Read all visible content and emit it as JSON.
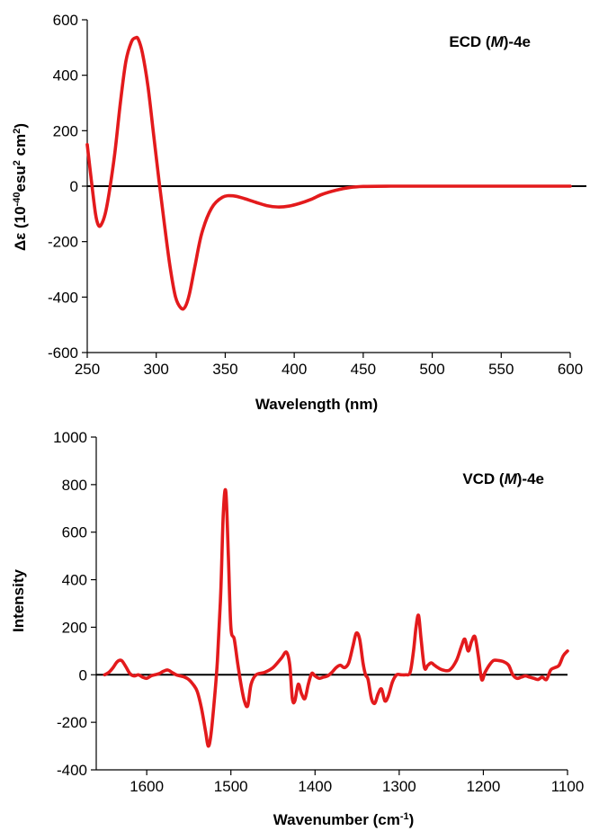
{
  "chart_data": [
    {
      "type": "line",
      "title_prefix": "ECD (",
      "title_italic": "M",
      "title_suffix": ")-4e",
      "xlabel": "Wavelength (nm)",
      "ylabel_main": "Δε  (10",
      "ylabel_sup1": "-40",
      "ylabel_mid": "esu",
      "ylabel_sup2": "2",
      "ylabel_end": " cm",
      "ylabel_sup3": "2",
      "ylabel_close": ")",
      "xlim": [
        250,
        600
      ],
      "ylim": [
        -600,
        600
      ],
      "x_reversed": false,
      "xticks": [
        250,
        300,
        350,
        400,
        450,
        500,
        550,
        600
      ],
      "yticks": [
        -600,
        -400,
        -200,
        0,
        200,
        400,
        600
      ],
      "grid": false,
      "zero_line": true,
      "series_color": "#e31a1c",
      "x": [
        250,
        253,
        256,
        258,
        260,
        263,
        266,
        270,
        274,
        278,
        282,
        285,
        287,
        290,
        294,
        298,
        302,
        306,
        310,
        314,
        318,
        321,
        324,
        328,
        333,
        340,
        348,
        356,
        364,
        372,
        380,
        388,
        396,
        404,
        412,
        420,
        430,
        440,
        450,
        470,
        500,
        550,
        600
      ],
      "y": [
        150,
        20,
        -100,
        -140,
        -140,
        -100,
        -20,
        120,
        300,
        450,
        520,
        535,
        530,
        480,
        360,
        190,
        20,
        -140,
        -290,
        -400,
        -440,
        -435,
        -390,
        -290,
        -170,
        -80,
        -40,
        -35,
        -45,
        -58,
        -70,
        -75,
        -72,
        -62,
        -48,
        -30,
        -15,
        -5,
        -1,
        0,
        0,
        0,
        0
      ]
    },
    {
      "type": "line",
      "title_prefix": "VCD (",
      "title_italic": "M",
      "title_suffix": ")-4e",
      "xlabel_main": "Wavenumber (cm",
      "xlabel_sup": "-1",
      "xlabel_close": ")",
      "ylabel": "Intensity",
      "xlim": [
        1660,
        1100
      ],
      "ylim": [
        -400,
        1000
      ],
      "x_reversed": true,
      "xticks": [
        1600,
        1500,
        1400,
        1300,
        1200,
        1100
      ],
      "yticks": [
        -400,
        -200,
        0,
        200,
        400,
        600,
        800,
        1000
      ],
      "grid": false,
      "zero_line": true,
      "series_color": "#e31a1c",
      "x": [
        1650,
        1645,
        1640,
        1635,
        1630,
        1625,
        1620,
        1615,
        1610,
        1605,
        1600,
        1595,
        1590,
        1585,
        1580,
        1575,
        1570,
        1565,
        1560,
        1555,
        1550,
        1545,
        1540,
        1535,
        1530,
        1527,
        1524,
        1520,
        1516,
        1512,
        1509,
        1506,
        1503,
        1500,
        1496,
        1492,
        1488,
        1484,
        1480,
        1476,
        1470,
        1460,
        1450,
        1440,
        1434,
        1430,
        1427,
        1424,
        1420,
        1416,
        1412,
        1408,
        1404,
        1400,
        1395,
        1390,
        1385,
        1380,
        1375,
        1370,
        1365,
        1360,
        1355,
        1351,
        1347,
        1343,
        1340,
        1337,
        1333,
        1329,
        1325,
        1321,
        1317,
        1313,
        1308,
        1303,
        1298,
        1292,
        1287,
        1283,
        1280,
        1277,
        1274,
        1270,
        1266,
        1262,
        1258,
        1254,
        1248,
        1240,
        1232,
        1226,
        1222,
        1218,
        1214,
        1210,
        1206,
        1202,
        1198,
        1193,
        1188,
        1182,
        1176,
        1170,
        1165,
        1160,
        1155,
        1150,
        1145,
        1140,
        1135,
        1130,
        1125,
        1120,
        1115,
        1110,
        1105,
        1100
      ],
      "y": [
        0,
        10,
        30,
        55,
        60,
        35,
        5,
        -5,
        0,
        -10,
        -15,
        -5,
        0,
        5,
        15,
        20,
        10,
        0,
        -5,
        -10,
        -20,
        -40,
        -70,
        -140,
        -240,
        -300,
        -260,
        -120,
        60,
        350,
        680,
        770,
        500,
        200,
        150,
        50,
        -40,
        -110,
        -130,
        -40,
        0,
        10,
        30,
        70,
        95,
        40,
        -100,
        -110,
        -40,
        -80,
        -100,
        -40,
        5,
        -5,
        -15,
        -10,
        -5,
        10,
        30,
        40,
        30,
        50,
        120,
        175,
        150,
        50,
        0,
        -20,
        -100,
        -120,
        -80,
        -60,
        -110,
        -90,
        -30,
        0,
        0,
        0,
        10,
        100,
        200,
        250,
        150,
        30,
        40,
        50,
        40,
        30,
        20,
        20,
        60,
        120,
        150,
        100,
        140,
        160,
        80,
        -20,
        10,
        40,
        60,
        60,
        55,
        40,
        0,
        -15,
        -10,
        -5,
        -10,
        -15,
        -20,
        -10,
        -20,
        20,
        30,
        40,
        80,
        100
      ]
    }
  ]
}
